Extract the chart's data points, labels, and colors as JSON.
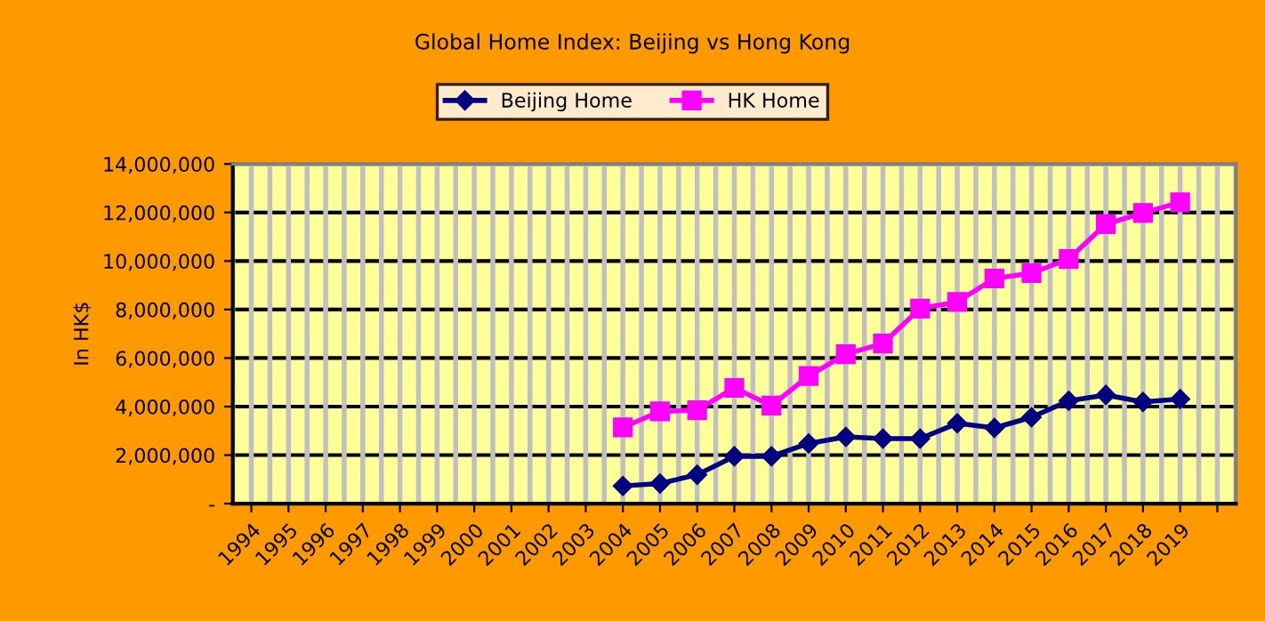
{
  "chart_data": {
    "type": "line",
    "title": "Global Home Index: Beijing vs Hong Kong",
    "ylabel": "In HK$",
    "categories": [
      "1994",
      "1995",
      "1996",
      "1997",
      "1998",
      "1999",
      "2000",
      "2001",
      "2002",
      "2003",
      "2004",
      "2005",
      "2006",
      "2007",
      "2008",
      "2009",
      "2010",
      "2011",
      "2012",
      "2013",
      "2014",
      "2015",
      "2016",
      "2017",
      "2018",
      "2019",
      null
    ],
    "series": [
      {
        "name": "Beijing Home",
        "color": "#000080",
        "marker": "diamond",
        "values": [
          null,
          null,
          null,
          null,
          null,
          null,
          null,
          null,
          null,
          null,
          730000,
          830000,
          1190000,
          1950000,
          1950000,
          2480000,
          2750000,
          2680000,
          2680000,
          3310000,
          3120000,
          3560000,
          4240000,
          4480000,
          4190000,
          4310000,
          null
        ]
      },
      {
        "name": "HK Home",
        "color": "#ff00ff",
        "marker": "square",
        "values": [
          null,
          null,
          null,
          null,
          null,
          null,
          null,
          null,
          null,
          null,
          3140000,
          3800000,
          3850000,
          4770000,
          4040000,
          5260000,
          6160000,
          6600000,
          8040000,
          8310000,
          9280000,
          9500000,
          10080000,
          11520000,
          11980000,
          12420000,
          null
        ]
      }
    ],
    "ylim": [
      0,
      14000000
    ],
    "yticks": [
      {
        "value": 0,
        "label": "-"
      },
      {
        "value": 2000000,
        "label": "2,000,000"
      },
      {
        "value": 4000000,
        "label": "4,000,000"
      },
      {
        "value": 6000000,
        "label": "6,000,000"
      },
      {
        "value": 8000000,
        "label": "8,000,000"
      },
      {
        "value": 10000000,
        "label": "10,000,000"
      },
      {
        "value": 12000000,
        "label": "12,000,000"
      },
      {
        "value": 14000000,
        "label": "14,000,000"
      }
    ],
    "grid": true,
    "legend": "top",
    "line_style": "solid"
  }
}
